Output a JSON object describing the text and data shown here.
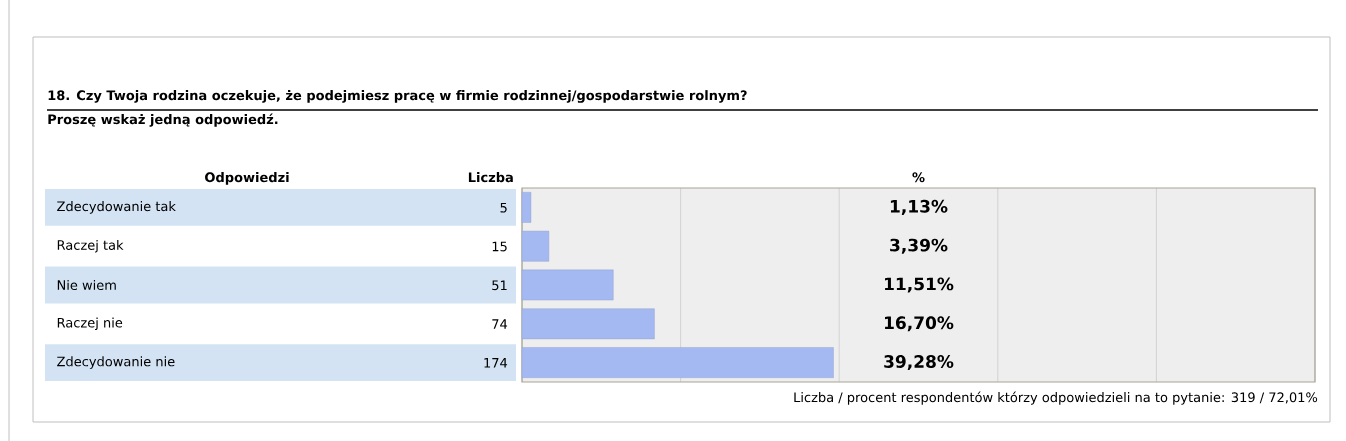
{
  "chart_data": {
    "type": "bar",
    "orientation": "horizontal",
    "title": "18. Czy Twoja rodzina oczekuje, że podejmiesz pracę w firmie rodzinnej/gospodarstwie rolnym?",
    "subtitle": "Proszę wskaż jedną odpowiedź.",
    "ylabel": "Odpowiedzi",
    "xlabel": "%",
    "categories": [
      "Zdecydowanie tak",
      "Raczej tak",
      "Nie wiem",
      "Raczej nie",
      "Zdecydowanie nie"
    ],
    "values": [
      1.13,
      3.39,
      11.51,
      16.7,
      39.28
    ],
    "value_labels": [
      "1,13%",
      "3,39%",
      "11,51%",
      "16,70%",
      "39,28%"
    ],
    "color": "#a4b8f2",
    "xlim": [
      0,
      100
    ],
    "xticks": [
      {
        "value": 0,
        "label": null
      },
      {
        "value": 20,
        "label": null
      },
      {
        "value": 40,
        "label": null
      },
      {
        "value": 60,
        "label": null
      },
      {
        "value": 80,
        "label": null
      },
      {
        "value": 100,
        "label": null
      }
    ],
    "grid": "x",
    "tick_labels": "y",
    "annotations": [
      "Liczba",
      "5",
      "15",
      "51",
      "74",
      "174",
      "Liczba / procent respondentów którzy odpowiedzieli na to pytanie: 319 / 72,01%"
    ]
  }
}
